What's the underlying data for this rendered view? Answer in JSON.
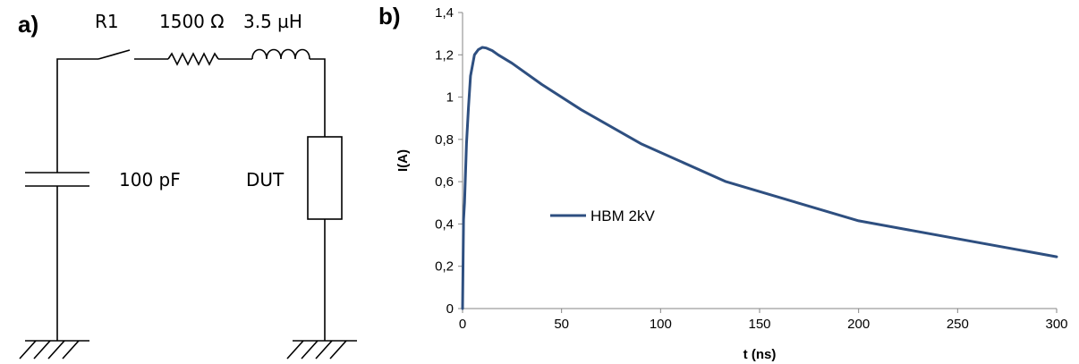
{
  "panel_a": {
    "letter": "a)",
    "switch_label": "R1",
    "resistor_label": "1500 Ω",
    "inductor_label": "3.5 µH",
    "capacitor_label": "100 pF",
    "dut_label": "DUT"
  },
  "panel_b": {
    "letter": "b)"
  },
  "chart_data": {
    "type": "line",
    "title": "",
    "xlabel": "t (ns)",
    "ylabel": "I(A)",
    "xlim": [
      0,
      300
    ],
    "ylim": [
      0,
      1.4
    ],
    "x_ticks": [
      0,
      50,
      100,
      150,
      200,
      250,
      300
    ],
    "x_tick_labels": [
      "0",
      "50",
      "100",
      "150",
      "200",
      "250",
      "300"
    ],
    "y_ticks": [
      0,
      0.2,
      0.4,
      0.6,
      0.8,
      1,
      1.2,
      1.4
    ],
    "y_tick_labels": [
      "0",
      "0,2",
      "0,4",
      "0,6",
      "0,8",
      "1",
      "1,2",
      "1,4"
    ],
    "grid": false,
    "legend_position": "center-left",
    "series": [
      {
        "name": "HBM 2kV",
        "color": "#2e4f80",
        "x": [
          0,
          0.5,
          1,
          2,
          3,
          4,
          6,
          8,
          10,
          12,
          15,
          18,
          25,
          40,
          60,
          90,
          133,
          200,
          300
        ],
        "y": [
          0,
          0.42,
          0.5,
          0.78,
          0.95,
          1.1,
          1.2,
          1.225,
          1.235,
          1.232,
          1.22,
          1.2,
          1.16,
          1.06,
          0.94,
          0.78,
          0.6,
          0.415,
          0.245
        ]
      }
    ]
  }
}
